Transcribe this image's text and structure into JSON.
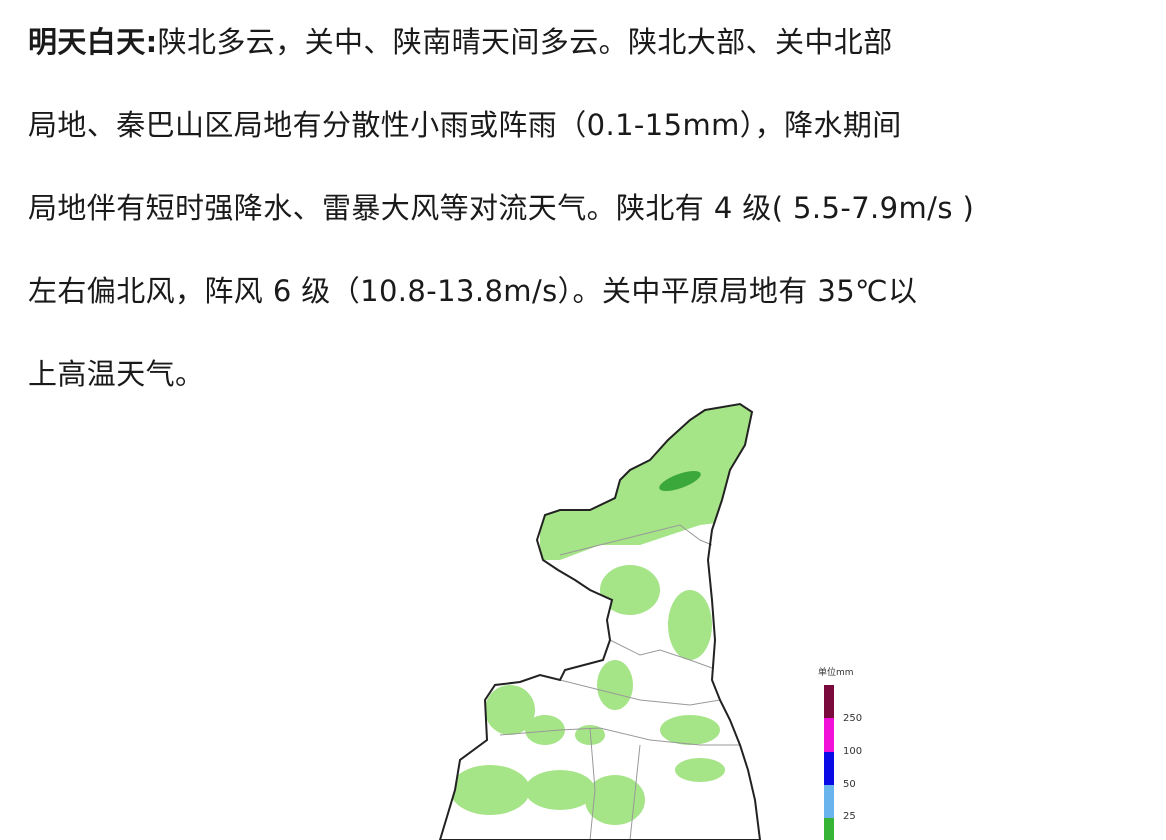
{
  "article": {
    "lead": "明天白天:",
    "lines": [
      "陕北多云，关中、陕南晴天间多云。陕北大部、关中北部",
      "局地、秦巴山区局地有分散性小雨或阵雨（0.1-15mm），降水期间",
      "局地伴有短时强降水、雷暴大风等对流天气。陕北有 4 级( 5.5-7.9m/s )",
      "左右偏北风，阵风 6 级（10.8-13.8m/s）。关中平原局地有 35℃以",
      "上高温天气。"
    ]
  },
  "map": {
    "legend_title": "单位mm",
    "legend_ticks": [
      "250",
      "100",
      "50",
      "25"
    ],
    "legend_colors": [
      "#7a0a3c",
      "#f010d8",
      "#0a0ae6",
      "#6ab4ee",
      "#36b436"
    ],
    "rain_color": "#a6e488",
    "heavy_rain_color": "#3aa83a"
  }
}
